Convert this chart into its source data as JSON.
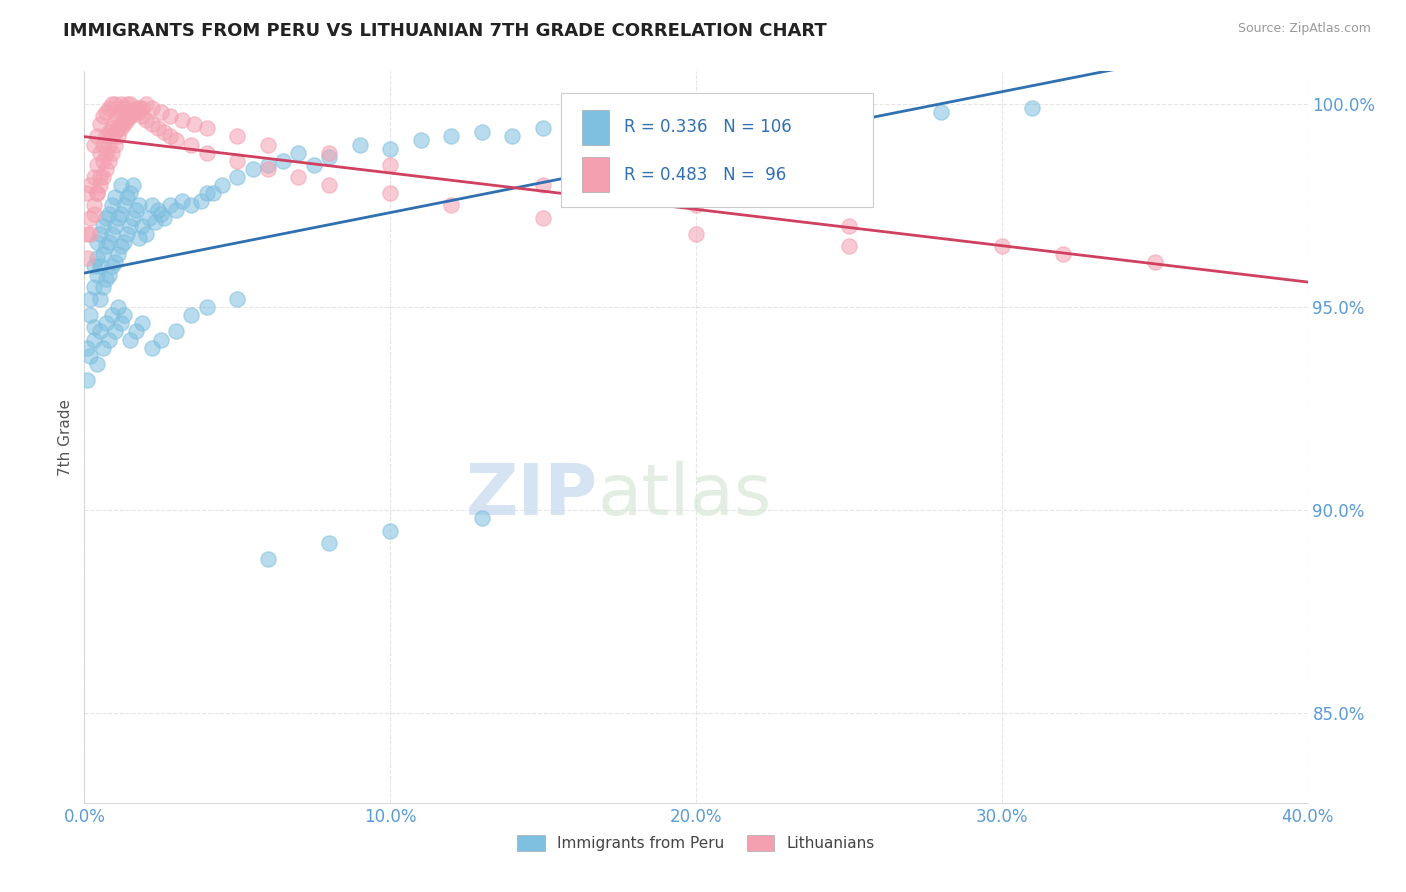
{
  "title": "IMMIGRANTS FROM PERU VS LITHUANIAN 7TH GRADE CORRELATION CHART",
  "source": "Source: ZipAtlas.com",
  "xlabel_blue": "Immigrants from Peru",
  "xlabel_pink": "Lithuanians",
  "ylabel": "7th Grade",
  "xlim": [
    0.0,
    0.4
  ],
  "ylim": [
    0.828,
    1.008
  ],
  "xticks": [
    0.0,
    0.1,
    0.2,
    0.3,
    0.4
  ],
  "yticks": [
    0.85,
    0.9,
    0.95,
    1.0
  ],
  "blue_R": 0.336,
  "blue_N": 106,
  "pink_R": 0.483,
  "pink_N": 96,
  "blue_color": "#7fbfdf",
  "pink_color": "#f4a0b0",
  "blue_line_color": "#3070b0",
  "pink_line_color": "#d04060",
  "watermark_zip": "ZIP",
  "watermark_atlas": "atlas",
  "blue_x": [
    0.001,
    0.002,
    0.002,
    0.003,
    0.003,
    0.003,
    0.004,
    0.004,
    0.004,
    0.005,
    0.005,
    0.005,
    0.006,
    0.006,
    0.006,
    0.007,
    0.007,
    0.007,
    0.008,
    0.008,
    0.008,
    0.009,
    0.009,
    0.009,
    0.01,
    0.01,
    0.01,
    0.011,
    0.011,
    0.012,
    0.012,
    0.012,
    0.013,
    0.013,
    0.014,
    0.014,
    0.015,
    0.015,
    0.016,
    0.016,
    0.017,
    0.018,
    0.018,
    0.019,
    0.02,
    0.021,
    0.022,
    0.023,
    0.024,
    0.025,
    0.026,
    0.028,
    0.03,
    0.032,
    0.035,
    0.038,
    0.04,
    0.042,
    0.045,
    0.05,
    0.055,
    0.06,
    0.065,
    0.07,
    0.075,
    0.08,
    0.09,
    0.1,
    0.11,
    0.12,
    0.13,
    0.14,
    0.15,
    0.165,
    0.18,
    0.2,
    0.22,
    0.25,
    0.28,
    0.31,
    0.001,
    0.002,
    0.003,
    0.004,
    0.005,
    0.006,
    0.007,
    0.008,
    0.009,
    0.01,
    0.011,
    0.012,
    0.013,
    0.015,
    0.017,
    0.019,
    0.022,
    0.025,
    0.03,
    0.035,
    0.04,
    0.05,
    0.06,
    0.08,
    0.1,
    0.13
  ],
  "blue_y": [
    0.94,
    0.948,
    0.952,
    0.955,
    0.96,
    0.945,
    0.958,
    0.962,
    0.966,
    0.952,
    0.96,
    0.968,
    0.955,
    0.963,
    0.97,
    0.957,
    0.965,
    0.972,
    0.958,
    0.966,
    0.973,
    0.96,
    0.968,
    0.975,
    0.961,
    0.97,
    0.977,
    0.963,
    0.972,
    0.965,
    0.973,
    0.98,
    0.966,
    0.975,
    0.968,
    0.977,
    0.97,
    0.978,
    0.972,
    0.98,
    0.974,
    0.967,
    0.975,
    0.97,
    0.968,
    0.972,
    0.975,
    0.971,
    0.974,
    0.973,
    0.972,
    0.975,
    0.974,
    0.976,
    0.975,
    0.976,
    0.978,
    0.978,
    0.98,
    0.982,
    0.984,
    0.985,
    0.986,
    0.988,
    0.985,
    0.987,
    0.99,
    0.989,
    0.991,
    0.992,
    0.993,
    0.992,
    0.994,
    0.995,
    0.996,
    0.996,
    0.997,
    0.998,
    0.998,
    0.999,
    0.932,
    0.938,
    0.942,
    0.936,
    0.944,
    0.94,
    0.946,
    0.942,
    0.948,
    0.944,
    0.95,
    0.946,
    0.948,
    0.942,
    0.944,
    0.946,
    0.94,
    0.942,
    0.944,
    0.948,
    0.95,
    0.952,
    0.888,
    0.892,
    0.895,
    0.898
  ],
  "pink_x": [
    0.001,
    0.001,
    0.002,
    0.002,
    0.003,
    0.003,
    0.003,
    0.004,
    0.004,
    0.004,
    0.005,
    0.005,
    0.005,
    0.006,
    0.006,
    0.006,
    0.007,
    0.007,
    0.007,
    0.008,
    0.008,
    0.008,
    0.009,
    0.009,
    0.009,
    0.01,
    0.01,
    0.01,
    0.011,
    0.011,
    0.012,
    0.012,
    0.012,
    0.013,
    0.013,
    0.014,
    0.014,
    0.015,
    0.015,
    0.016,
    0.017,
    0.018,
    0.019,
    0.02,
    0.022,
    0.024,
    0.026,
    0.028,
    0.03,
    0.035,
    0.04,
    0.05,
    0.06,
    0.07,
    0.08,
    0.1,
    0.12,
    0.15,
    0.2,
    0.25,
    0.001,
    0.002,
    0.003,
    0.004,
    0.005,
    0.006,
    0.007,
    0.008,
    0.009,
    0.01,
    0.011,
    0.012,
    0.013,
    0.014,
    0.015,
    0.016,
    0.017,
    0.018,
    0.019,
    0.02,
    0.022,
    0.025,
    0.028,
    0.032,
    0.036,
    0.04,
    0.05,
    0.06,
    0.08,
    0.1,
    0.15,
    0.2,
    0.25,
    0.3,
    0.32,
    0.35
  ],
  "pink_y": [
    0.968,
    0.978,
    0.972,
    0.98,
    0.975,
    0.982,
    0.99,
    0.978,
    0.985,
    0.992,
    0.98,
    0.988,
    0.995,
    0.982,
    0.99,
    0.997,
    0.984,
    0.992,
    0.998,
    0.986,
    0.993,
    0.999,
    0.988,
    0.994,
    1.0,
    0.99,
    0.996,
    1.0,
    0.992,
    0.997,
    0.994,
    0.998,
    1.0,
    0.995,
    0.999,
    0.996,
    1.0,
    0.997,
    1.0,
    0.998,
    0.999,
    0.998,
    0.997,
    0.996,
    0.995,
    0.994,
    0.993,
    0.992,
    0.991,
    0.99,
    0.988,
    0.986,
    0.984,
    0.982,
    0.98,
    0.978,
    0.975,
    0.972,
    0.968,
    0.965,
    0.962,
    0.968,
    0.973,
    0.978,
    0.982,
    0.986,
    0.988,
    0.99,
    0.992,
    0.993,
    0.994,
    0.995,
    0.996,
    0.997,
    0.997,
    0.998,
    0.998,
    0.999,
    0.999,
    1.0,
    0.999,
    0.998,
    0.997,
    0.996,
    0.995,
    0.994,
    0.992,
    0.99,
    0.988,
    0.985,
    0.98,
    0.975,
    0.97,
    0.965,
    0.963,
    0.961
  ]
}
